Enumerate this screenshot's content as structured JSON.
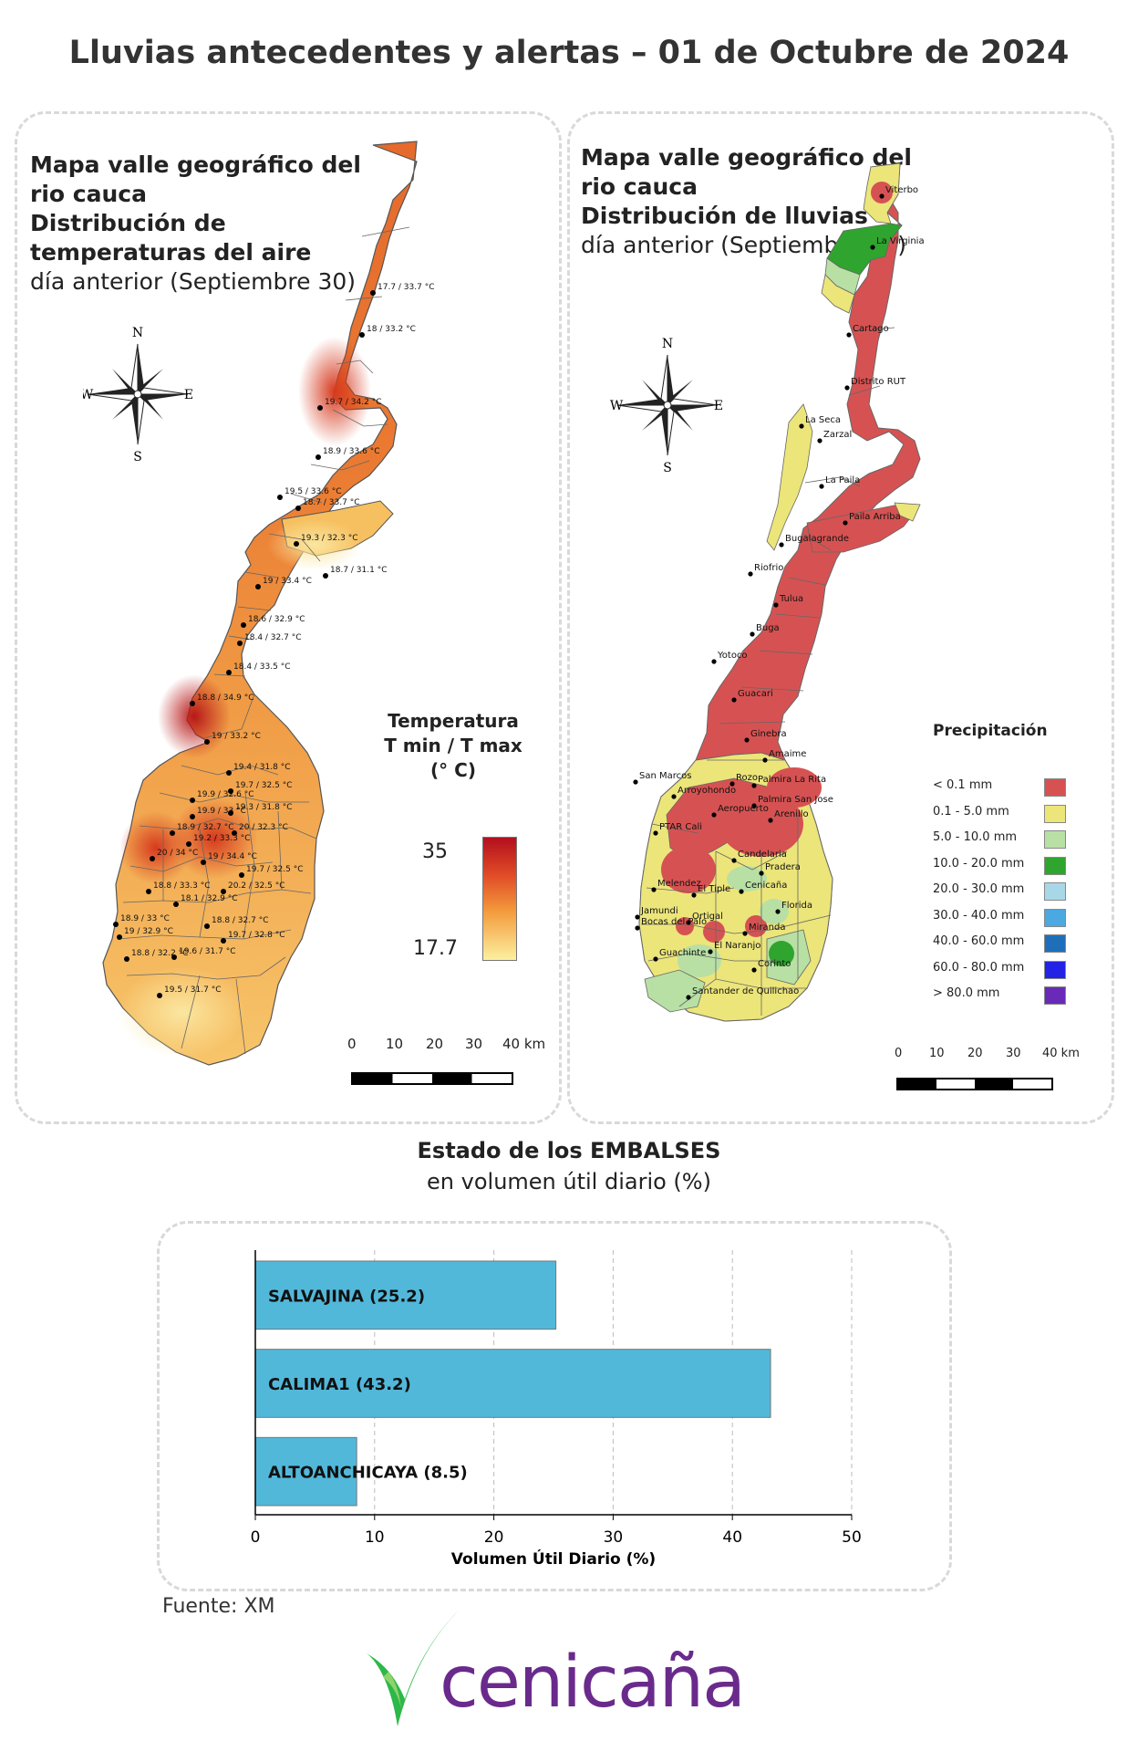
{
  "header": {
    "title": "Lluvias antecedentes y alertas – 01 de Octubre de 2024"
  },
  "temp_map": {
    "title_line1": "Mapa valle geográfico del",
    "title_line2": "rio cauca",
    "title_line3": "Distribución de",
    "title_line4": "temperaturas del aire",
    "title_line5": "día anterior (Septiembre 30)",
    "compass": {
      "n": "N",
      "s": "S",
      "e": "E",
      "w": "W"
    },
    "legend_title_1": "Temperatura",
    "legend_title_2": "T min / T max",
    "legend_title_3": "(° C)",
    "legend_max": "35",
    "legend_min": "17.7",
    "scale_labels": [
      "0",
      "10",
      "20",
      "30",
      "40 km"
    ],
    "station_labels": [
      "17.7 / 33.7 °C",
      "18 / 33.2 °C",
      "19.7 / 34.2 °C",
      "18.9 / 33.6 °C",
      "19.5 / 33.6 °C",
      "18.7 / 33.7 °C",
      "19.3 / 32.3 °C",
      "18.7 / 31.1 °C",
      "19 / 33.4 °C",
      "18.6 / 32.9 °C",
      "18.4 / 32.7 °C",
      "18.4 / 33.5 °C",
      "18.8 / 34.9 °C",
      "19 / 33.2 °C",
      "19.4 / 31.8 °C",
      "19.9 / 32.6 °C",
      "19.7 / 32.5 °C",
      "19.9 / 33 °C",
      "19.3 / 31.8 °C",
      "18.9 / 32.7 °C",
      "20 / 32.3 °C",
      "20 / 34 °C",
      "19.2 / 33.3 °C",
      "19 / 34.4 °C",
      "19.7 / 32.5 °C",
      "18.8 / 33.3 °C",
      "20.2 / 32.5 °C",
      "18.1 / 32.9 °C",
      "18.9 / 33 °C",
      "18.8 / 32.7 °C",
      "19 / 32.9 °C",
      "19.7 / 32.8 °C",
      "18.8 / 32.2 °C",
      "19.6 / 31.7 °C",
      "19.5 / 31.7 °C"
    ]
  },
  "rain_map": {
    "title_line1": "Mapa valle geográfico del",
    "title_line2": "rio cauca",
    "title_line3": "Distribución de lluvias",
    "title_line4": "día anterior (Septiembre 30)",
    "compass": {
      "n": "N",
      "s": "S",
      "e": "E",
      "w": "W"
    },
    "legend_title": "Precipitación",
    "legend": [
      {
        "label": "< 0.1 mm",
        "color": "#d65252"
      },
      {
        "label": "0.1 - 5.0 mm",
        "color": "#ece57a"
      },
      {
        "label": "5.0 - 10.0 mm",
        "color": "#b8e0a4"
      },
      {
        "label": "10.0 - 20.0 mm",
        "color": "#2fa42f"
      },
      {
        "label": "20.0 - 30.0 mm",
        "color": "#a8d8e8"
      },
      {
        "label": "30.0 - 40.0 mm",
        "color": "#4ba8e0"
      },
      {
        "label": "40.0 - 60.0 mm",
        "color": "#1f6fb8"
      },
      {
        "label": "60.0 - 80.0 mm",
        "color": "#2323e6"
      },
      {
        "label": "> 80.0 mm",
        "color": "#6a2ab8"
      }
    ],
    "scale_labels": [
      "0",
      "10",
      "20",
      "30",
      "40 km"
    ],
    "stations": [
      "Viterbo",
      "La Virginia",
      "Cartago",
      "Distrito RUT",
      "La Seca",
      "Zarzal",
      "La Paila",
      "Paila Arriba",
      "Bugalagrande",
      "Riofrio",
      "Tulua",
      "Buga",
      "Yotoco",
      "Guacari",
      "Ginebra",
      "Amaime",
      "San Marcos",
      "Rozo",
      "Palmira La Rita",
      "Arroyohondo",
      "Palmira San Jose",
      "Aeropuerto",
      "Arenillo",
      "PTAR Cali",
      "Candelaria",
      "Pradera",
      "Melendez",
      "El Tiple",
      "Cenicaña",
      "Florida",
      "Jamundi",
      "Bocas del Palo",
      "Ortigal",
      "Miranda",
      "Guachinte",
      "El Naranjo",
      "Corinto",
      "Santander de Quilichao"
    ]
  },
  "reservoirs": {
    "title": "Estado de los EMBALSES",
    "subtitle": "en volumen útil diario (%)"
  },
  "chart_data": {
    "type": "bar",
    "orientation": "horizontal",
    "categories": [
      "SALVAJINA (25.2)",
      "CALIMA1 (43.2)",
      "ALTOANCHICAYA (8.5)"
    ],
    "values": [
      25.2,
      43.2,
      8.5
    ],
    "xlabel": "Volumen Útil Diario (%)",
    "ylabel": "",
    "xlim": [
      0,
      50
    ],
    "xticks": [
      "0",
      "10",
      "20",
      "30",
      "40",
      "50"
    ],
    "grid": true,
    "bar_color": "#52b8da"
  },
  "footer": {
    "source": "Fuente: XM",
    "logo_text": "cenicaña",
    "logo_purple": "#6a2a8c",
    "logo_green": "#2db84a"
  }
}
